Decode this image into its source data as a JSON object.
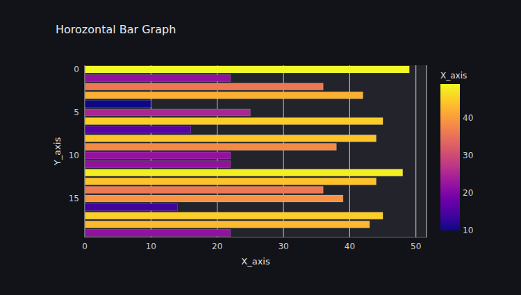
{
  "chart_data": {
    "type": "bar",
    "title": "Horozontal Bar Graph",
    "orientation": "horizontal",
    "xlabel": "X_axis",
    "ylabel": "Y_axis",
    "y": [
      0,
      1,
      2,
      3,
      4,
      5,
      6,
      7,
      8,
      9,
      10,
      11,
      12,
      13,
      14,
      15,
      16,
      17,
      18,
      19
    ],
    "values": [
      49,
      22,
      36,
      42,
      10,
      25,
      45,
      16,
      44,
      38,
      22,
      22,
      48,
      44,
      36,
      39,
      14,
      45,
      43,
      22
    ],
    "xlim": [
      0,
      51.6
    ],
    "xticks": [
      0,
      10,
      20,
      30,
      40,
      50
    ],
    "ylim": [
      -0.5,
      19.5
    ],
    "yticks": [
      0,
      5,
      10,
      15
    ],
    "grid": true,
    "colorbar": {
      "title": "X_axis",
      "range": [
        10,
        49
      ],
      "ticks": [
        10,
        20,
        30,
        40
      ]
    }
  }
}
